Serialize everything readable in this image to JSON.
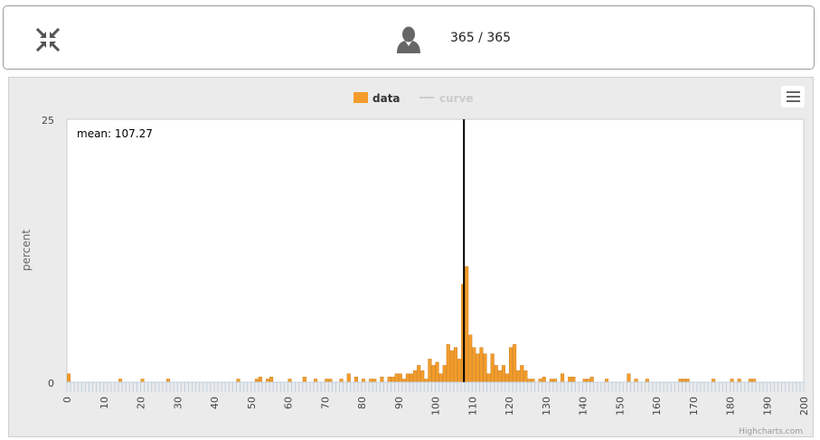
{
  "header": {
    "collapse_icon": "collapse-arrows-icon",
    "user_icon": "user-icon",
    "user_count": "365 / 365"
  },
  "chart_menu": {
    "icon": "hamburger-menu-icon"
  },
  "chart_data": {
    "type": "bar",
    "title": "",
    "xlabel": "",
    "ylabel": "percent",
    "xlim": [
      0,
      200
    ],
    "ylim": [
      0,
      25
    ],
    "y_ticks": [
      0,
      25
    ],
    "x_ticks": [
      0,
      10,
      20,
      30,
      40,
      50,
      60,
      70,
      80,
      90,
      100,
      110,
      120,
      130,
      140,
      150,
      160,
      170,
      180,
      190,
      200
    ],
    "legend": {
      "position": "top-center",
      "items": [
        {
          "name": "data",
          "color": "#f39c2b",
          "visible": true
        },
        {
          "name": "curve",
          "color": "#cccccc",
          "visible": false
        }
      ]
    },
    "mean": {
      "label": "mean: 107.27",
      "value": 107.27
    },
    "credit": "Highcharts.com",
    "bar_color": "#f39c2b",
    "bar_border_color": "#c27814",
    "series": [
      {
        "name": "data",
        "x": [
          0,
          14,
          20,
          27,
          46,
          51,
          52,
          54,
          55,
          60,
          64,
          67,
          70,
          71,
          74,
          76,
          78,
          80,
          82,
          83,
          85,
          87,
          88,
          89,
          90,
          91,
          92,
          93,
          94,
          95,
          96,
          97,
          98,
          99,
          100,
          101,
          102,
          103,
          104,
          105,
          106,
          107,
          108,
          109,
          110,
          111,
          112,
          113,
          114,
          115,
          116,
          117,
          118,
          119,
          120,
          121,
          122,
          123,
          124,
          125,
          126,
          128,
          129,
          131,
          132,
          134,
          136,
          137,
          140,
          141,
          142,
          146,
          152,
          154,
          157,
          166,
          167,
          168,
          175,
          180,
          182,
          185,
          186
        ],
        "values": [
          0.8,
          0.3,
          0.3,
          0.3,
          0.3,
          0.3,
          0.5,
          0.3,
          0.5,
          0.3,
          0.5,
          0.3,
          0.3,
          0.3,
          0.3,
          0.8,
          0.5,
          0.3,
          0.3,
          0.3,
          0.5,
          0.5,
          0.5,
          0.8,
          0.8,
          0.3,
          0.8,
          0.8,
          1.1,
          1.6,
          1.1,
          0.3,
          2.2,
          1.6,
          1.9,
          0.8,
          1.6,
          3.6,
          3.0,
          3.3,
          2.2,
          9.3,
          11.0,
          4.5,
          3.3,
          2.7,
          3.3,
          2.7,
          0.8,
          2.7,
          1.6,
          1.1,
          1.6,
          0.8,
          3.3,
          3.6,
          1.1,
          1.6,
          1.1,
          0.3,
          0.3,
          0.3,
          0.5,
          0.3,
          0.3,
          0.8,
          0.5,
          0.5,
          0.3,
          0.3,
          0.5,
          0.3,
          0.8,
          0.3,
          0.3,
          0.3,
          0.3,
          0.3,
          0.3,
          0.3,
          0.3,
          0.3,
          0.3
        ]
      }
    ]
  }
}
